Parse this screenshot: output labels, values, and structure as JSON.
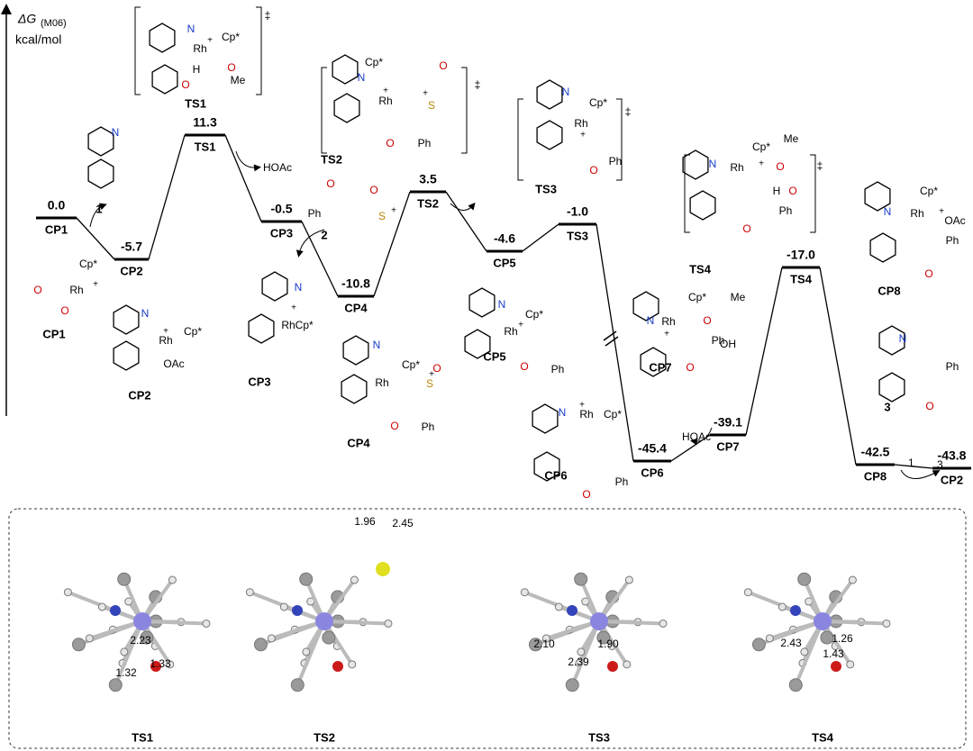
{
  "axis": {
    "symbol": "ΔG",
    "subscript": "(M06)",
    "unit": "kcal/mol"
  },
  "levels": [
    {
      "name": "CP1",
      "energy": "0.0"
    },
    {
      "name": "CP2",
      "energy": "-5.7"
    },
    {
      "name": "TS1",
      "energy": "11.3"
    },
    {
      "name": "CP3",
      "energy": "-0.5"
    },
    {
      "name": "CP4",
      "energy": "-10.8"
    },
    {
      "name": "TS2",
      "energy": "3.5"
    },
    {
      "name": "CP5",
      "energy": "-4.6"
    },
    {
      "name": "TS3",
      "energy": "-1.0"
    },
    {
      "name": "CP6",
      "energy": "-45.4"
    },
    {
      "name": "CP7",
      "energy": "-39.1"
    },
    {
      "name": "TS4",
      "energy": "-17.0"
    },
    {
      "name": "CP8",
      "energy": "-42.5"
    },
    {
      "name": "CP2",
      "energy": "-43.8"
    }
  ],
  "reagents": [
    "HOAc",
    "HOAc",
    "1",
    "3"
  ],
  "structures": [
    {
      "caption": "TS1",
      "atoms": [
        "N",
        "Rh",
        "+",
        "Cp*",
        "H",
        "O",
        "O",
        "Me",
        "‡"
      ]
    },
    {
      "caption": "1",
      "atoms": [
        "N"
      ]
    },
    {
      "caption": "CP1",
      "atoms": [
        "Cp*",
        "Rh",
        "+",
        "O",
        "O"
      ]
    },
    {
      "caption": "CP2",
      "atoms": [
        "N",
        "Rh",
        "+",
        "Cp*",
        "OAc"
      ]
    },
    {
      "caption": "TS2",
      "atoms": [
        "N",
        "Rh",
        "+",
        "Cp*",
        "S",
        "+",
        "O",
        "O",
        "Ph",
        "‡"
      ]
    },
    {
      "caption": "2",
      "atoms": [
        "Ph",
        "O",
        "S",
        "O",
        "+"
      ]
    },
    {
      "caption": "CP3",
      "atoms": [
        "N",
        "+",
        "RhCp*"
      ]
    },
    {
      "caption": "CP4",
      "atoms": [
        "N",
        "Rh",
        "Cp*",
        "S",
        "+",
        "O",
        "O",
        "Ph"
      ]
    },
    {
      "caption": "TS3",
      "atoms": [
        "N",
        "Cp*",
        "Rh",
        "+",
        "O",
        "Ph",
        "‡"
      ]
    },
    {
      "caption": "CP5",
      "atoms": [
        "N",
        "Cp*",
        "Rh",
        "+",
        "O",
        "Ph"
      ]
    },
    {
      "caption": "CP6",
      "atoms": [
        "N",
        "Rh",
        "+",
        "Cp*",
        "O",
        "Ph"
      ]
    },
    {
      "caption": "TS4",
      "atoms": [
        "N",
        "Cp*",
        "Rh",
        "+",
        "O",
        "Me",
        "H",
        "O",
        "O",
        "Ph",
        "‡"
      ]
    },
    {
      "caption": "CP7",
      "atoms": [
        "N",
        "Rh",
        "+",
        "Cp*",
        "O",
        "Me",
        "OH",
        "O",
        "Ph"
      ]
    },
    {
      "caption": "CP8",
      "atoms": [
        "N",
        "Cp*",
        "Rh",
        "+",
        "OAc",
        "Ph",
        "O"
      ]
    },
    {
      "caption": "3",
      "atoms": [
        "N",
        "Ph",
        "O"
      ]
    }
  ],
  "geometries": [
    {
      "caption": "TS1",
      "distances": [
        "2.23",
        "1.33",
        "1.32"
      ]
    },
    {
      "caption": "TS2",
      "distances": [
        "1.96",
        "2.45"
      ]
    },
    {
      "caption": "TS3",
      "distances": [
        "2.10",
        "2.39",
        "1.90"
      ]
    },
    {
      "caption": "TS4",
      "distances": [
        "2.43",
        "1.26",
        "1.43"
      ]
    }
  ]
}
